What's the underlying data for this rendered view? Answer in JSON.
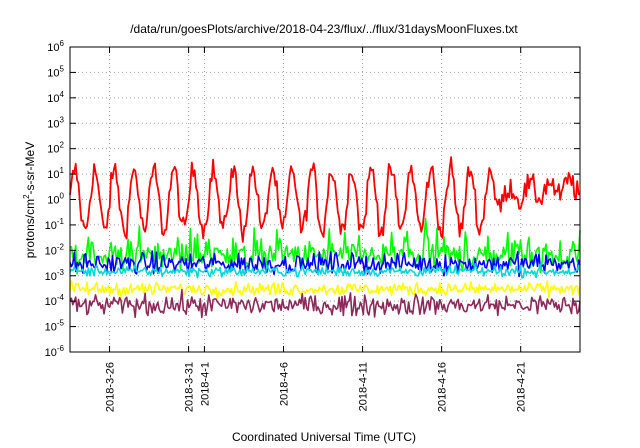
{
  "chart_data": {
    "type": "line",
    "title": "/data/run/goesPlots/archive/2018-04-23/flux/../flux/31daysMoonFluxes.txt",
    "xlabel": "Coordinated Universal Time (UTC)",
    "ylabel": "protons/cm²-s-sr-MeV",
    "ylabel_parts": {
      "before": "protons/cm",
      "sup": "2",
      "after": "-s-sr-MeV"
    },
    "yscale": "log",
    "ylim": [
      1e-06,
      1000000.0
    ],
    "xlim": [
      "2018-03-23T12:00",
      "2018-04-24T18:00"
    ],
    "y_ticks": [
      {
        "base": "10",
        "exp": "-6"
      },
      {
        "base": "10",
        "exp": "-5"
      },
      {
        "base": "10",
        "exp": "-4"
      },
      {
        "base": "10",
        "exp": "-3"
      },
      {
        "base": "10",
        "exp": "-2"
      },
      {
        "base": "10",
        "exp": "-1"
      },
      {
        "base": "10",
        "exp": "0"
      },
      {
        "base": "10",
        "exp": "1"
      },
      {
        "base": "10",
        "exp": "2"
      },
      {
        "base": "10",
        "exp": "3"
      },
      {
        "base": "10",
        "exp": "4"
      },
      {
        "base": "10",
        "exp": "5"
      },
      {
        "base": "10",
        "exp": "6"
      }
    ],
    "x_ticks": [
      {
        "date": "2018-03-26",
        "label": "2018-3-26"
      },
      {
        "date": "2018-03-31",
        "label": "2018-3-31"
      },
      {
        "date": "2018-04-01",
        "label": "2018-4-1"
      },
      {
        "date": "2018-04-06",
        "label": "2018-4-6"
      },
      {
        "date": "2018-04-11",
        "label": "2018-4-11"
      },
      {
        "date": "2018-04-16",
        "label": "2018-4-16"
      },
      {
        "date": "2018-04-21",
        "label": "2018-4-21"
      }
    ],
    "grid": true,
    "series": [
      {
        "color": "#ff0000",
        "base": 0.9,
        "osc": 1.2,
        "noise": 0.45,
        "level_pts": [
          [
            "2018-03-23T12:00",
            0.9
          ],
          [
            "2018-04-19T00:00",
            1.0
          ],
          [
            "2018-04-20T00:00",
            1.5
          ],
          [
            "2018-04-24T18:00",
            3.5
          ]
        ]
      },
      {
        "color": "#00ff00",
        "base": 0.006,
        "osc": 0.0,
        "noise": 0.55,
        "level_pts": []
      },
      {
        "color": "#0000ff",
        "base": 0.003,
        "osc": 0.0,
        "noise": 0.4,
        "level_pts": []
      },
      {
        "color": "#00d8d8",
        "base": 0.0015,
        "osc": 0.0,
        "noise": 0.2,
        "level_pts": []
      },
      {
        "color": "#ffff00",
        "base": 0.0003,
        "osc": 0.0,
        "noise": 0.25,
        "level_pts": []
      },
      {
        "color": "#8b2a5a",
        "base": 7e-05,
        "osc": 0.0,
        "noise": 0.4,
        "level_pts": []
      }
    ]
  }
}
